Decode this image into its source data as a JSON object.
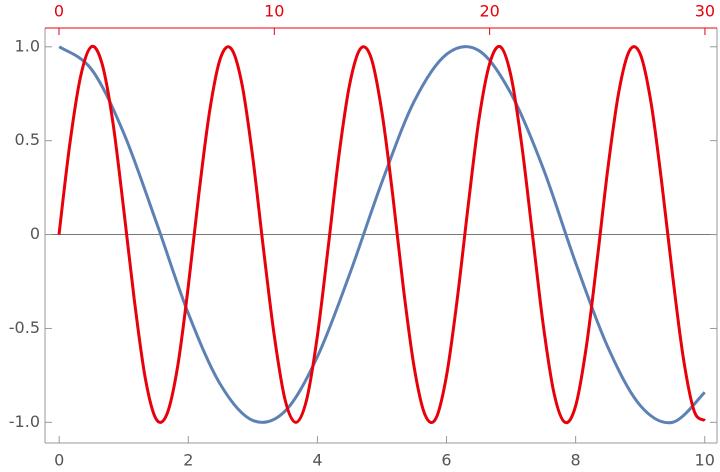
{
  "chart_data": {
    "type": "line",
    "xlim": [
      -0.22,
      10.19
    ],
    "xticks": [
      0,
      2,
      4,
      6,
      8,
      10
    ],
    "x2lim": [
      -0.65,
      30.56
    ],
    "x2ticks": [
      0,
      10,
      20,
      30
    ],
    "x2color": "#e8000b",
    "ylim": [
      -1.11,
      1.1
    ],
    "yticks": [
      {
        "value": 1,
        "label": "1.0"
      },
      0.5,
      0,
      -0.5,
      {
        "value": -1,
        "label": "-1.0"
      }
    ],
    "series": [
      {
        "color": "#5e81b5",
        "x": [
          0,
          0.5,
          1,
          1.5,
          2,
          2.5,
          3,
          3.5,
          4,
          4.5,
          5,
          5.5,
          6,
          6.5,
          7,
          7.5,
          8,
          8.5,
          9,
          9.5,
          10
        ],
        "values": [
          1,
          0.88,
          0.54,
          0.07,
          -0.42,
          -0.8,
          -0.99,
          -0.94,
          -0.65,
          -0.21,
          0.28,
          0.71,
          0.96,
          0.98,
          0.75,
          0.35,
          -0.15,
          -0.6,
          -0.91,
          -1,
          -0.84
        ]
      },
      {
        "color": "#e8000b",
        "axis": "x2",
        "x": [
          0,
          0.5,
          1,
          1.5,
          2,
          2.5,
          3,
          3.5,
          4,
          4.5,
          5,
          5.5,
          6,
          6.5,
          7,
          7.5,
          8,
          8.5,
          9,
          9.5,
          10,
          10.5,
          11,
          11.5,
          12,
          12.5,
          13,
          13.5,
          14,
          14.5,
          15,
          15.5,
          16,
          16.5,
          17,
          17.5,
          18,
          18.5,
          19,
          19.5,
          20,
          20.5,
          21,
          21.5,
          22,
          22.5,
          23,
          23.5,
          24,
          24.5,
          25,
          25.5,
          26,
          26.5,
          27,
          27.5,
          28,
          28.5,
          29,
          29.5,
          30
        ],
        "values": [
          0,
          0.48,
          0.84,
          1,
          0.91,
          0.6,
          0.14,
          -0.35,
          -0.76,
          -0.98,
          -0.96,
          -0.71,
          -0.28,
          0.22,
          0.66,
          0.94,
          0.99,
          0.8,
          0.41,
          -0.08,
          -0.54,
          -0.88,
          -1,
          -0.88,
          -0.54,
          -0.07,
          0.42,
          0.8,
          0.99,
          0.94,
          0.65,
          0.21,
          -0.29,
          -0.71,
          -0.96,
          -0.98,
          -0.75,
          -0.34,
          0.15,
          0.61,
          0.91,
          1,
          0.84,
          0.47,
          -0.01,
          -0.49,
          -0.85,
          -1,
          -0.91,
          -0.59,
          -0.13,
          0.36,
          0.76,
          0.98,
          0.96,
          0.7,
          0.27,
          -0.22,
          -0.66,
          -0.94,
          -0.99
        ]
      }
    ]
  }
}
